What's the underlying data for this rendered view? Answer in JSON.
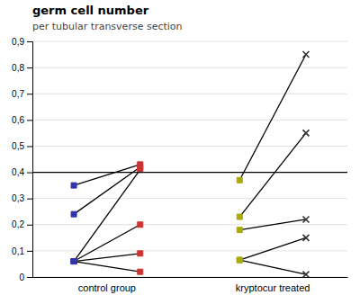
{
  "chart_data": {
    "type": "slope",
    "title": "germ cell number",
    "subtitle": "per tubular transverse section",
    "categories": [
      "control group",
      "kryptocur treated"
    ],
    "series": [
      {
        "color": "#000000",
        "colors": [
          "#3333aa",
          "#cc3333"
        ],
        "markers": [
          "square",
          "square"
        ],
        "values": [
          [
            0.35,
            0.43
          ],
          [
            0.24,
            0.42
          ],
          [
            0.06,
            0.41
          ],
          [
            0.06,
            0.2
          ],
          [
            0.06,
            0.09
          ],
          [
            0.06,
            0.02
          ]
        ]
      },
      {
        "color": "#000000",
        "colors": [
          "#aaaa00",
          "#333333"
        ],
        "markers": [
          "square",
          "cross"
        ],
        "values": [
          [
            0.37,
            0.85
          ],
          [
            0.23,
            0.55
          ],
          [
            0.18,
            0.22
          ],
          [
            0.065,
            0.15
          ],
          [
            0.065,
            0.01
          ]
        ]
      }
    ],
    "reference_line": {
      "value": 0.4,
      "color": "#000000"
    },
    "ylim": [
      0,
      0.9
    ],
    "yticks": [
      0,
      {
        "value": 0.1,
        "label": "0,1"
      },
      {
        "value": 0.2,
        "label": "0,2"
      },
      {
        "value": 0.3,
        "label": "0,3"
      },
      {
        "value": 0.4,
        "label": "0,4"
      },
      {
        "value": 0.5,
        "label": "0,5"
      },
      {
        "value": 0.6,
        "label": "0,6"
      },
      {
        "value": 0.7,
        "label": "0,7"
      },
      {
        "value": 0.8,
        "label": "0,8"
      },
      {
        "value": 0.9,
        "label": "0,9"
      }
    ],
    "grid": true
  }
}
